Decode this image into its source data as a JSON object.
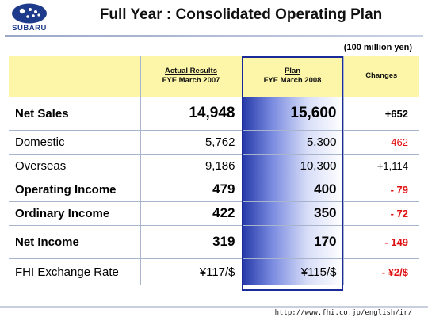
{
  "brand": {
    "name": "SUBARU"
  },
  "title": "Full Year : Consolidated Operating Plan",
  "unit": "(100 million yen)",
  "columns": {
    "actual_title": "Actual Results",
    "actual_sub": "FYE March 2007",
    "plan_title": "Plan",
    "plan_sub": "FYE March 2008",
    "changes": "Changes"
  },
  "rows": [
    {
      "label": "Net Sales",
      "actual": "14,948",
      "plan": "15,600",
      "change": "+652"
    },
    {
      "label": "Domestic",
      "actual": "5,762",
      "plan": "5,300",
      "change": "- 462"
    },
    {
      "label": "Overseas",
      "actual": "9,186",
      "plan": "10,300",
      "change": "+1,114"
    },
    {
      "label": "Operating Income",
      "actual": "479",
      "plan": "400",
      "change": "- 79"
    },
    {
      "label": "Ordinary Income",
      "actual": "422",
      "plan": "350",
      "change": "- 72"
    },
    {
      "label": "Net Income",
      "actual": "319",
      "plan": "170",
      "change": "- 149"
    },
    {
      "label": "FHI Exchange Rate",
      "actual": "¥117/$",
      "plan": "¥115/$",
      "change": "- ¥2/$"
    }
  ],
  "colors": {
    "negative": "#e01010",
    "header_fill": "#fdf6a8",
    "plan_accent": "#2438a8"
  },
  "footer": {
    "url": "http://www.fhi.co.jp/english/ir/"
  }
}
